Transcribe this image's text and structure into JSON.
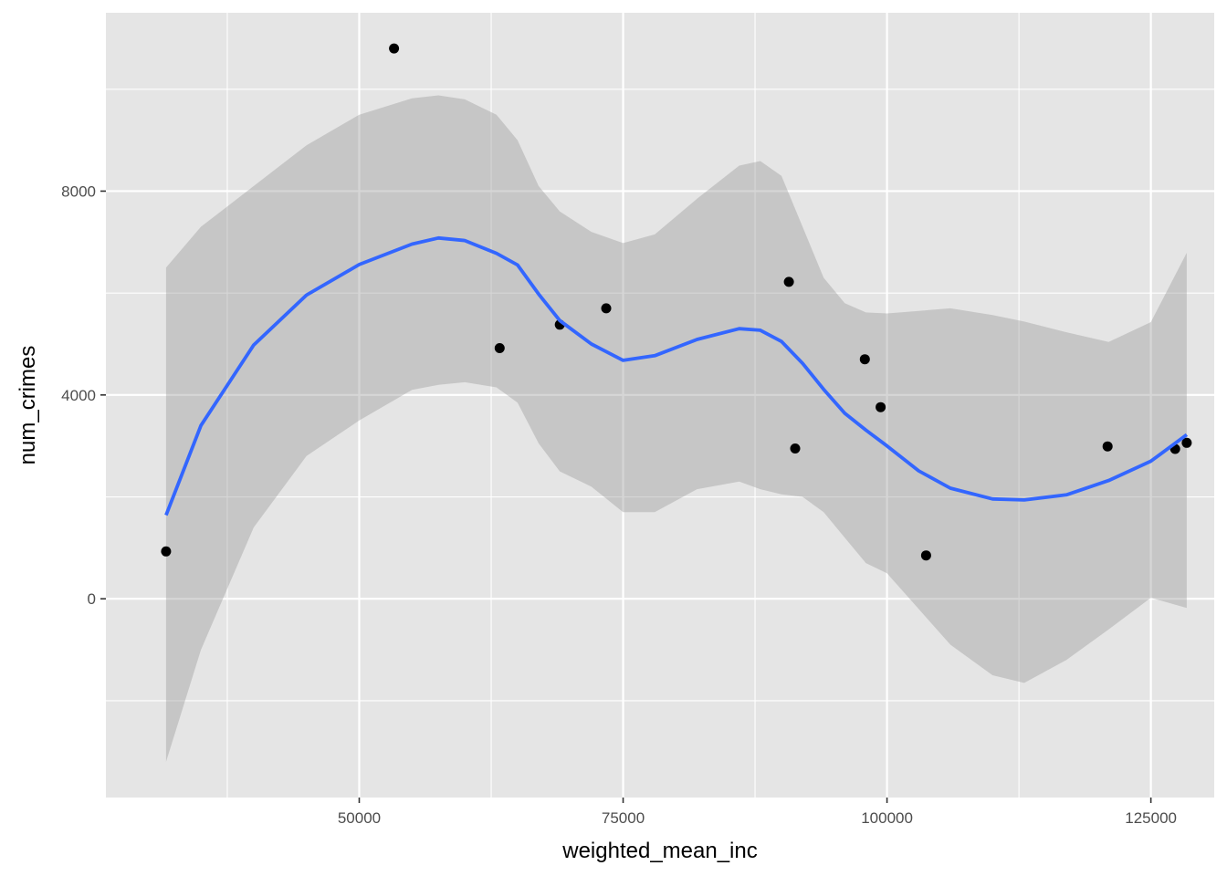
{
  "chart_data": {
    "type": "scatter",
    "title": "",
    "xlabel": "weighted_mean_inc",
    "ylabel": "num_crimes",
    "xlim": [
      26000,
      131000
    ],
    "ylim": [
      -3900,
      11500
    ],
    "x_ticks": [
      50000,
      75000,
      100000,
      125000
    ],
    "x_tick_labels": [
      "50000",
      "75000",
      "100000",
      "125000"
    ],
    "x_minor_ticks": [
      37500,
      62500,
      87500,
      112500
    ],
    "y_ticks": [
      0,
      4000,
      8000
    ],
    "y_tick_labels": [
      "0",
      "4000",
      "8000"
    ],
    "y_minor_ticks": [
      -2000,
      2000,
      6000,
      10000
    ],
    "grid": true,
    "colors": {
      "panel": "#e5e5e5",
      "grid": "#ffffff",
      "points": "#000000",
      "smooth_line": "#3366ff",
      "ribbon": "#999999"
    },
    "points": {
      "x": [
        31700,
        53300,
        63300,
        69000,
        73400,
        90700,
        91300,
        97900,
        99400,
        103700,
        120900,
        127300,
        128400
      ],
      "y": [
        930,
        10800,
        4920,
        5380,
        5700,
        6220,
        2950,
        4700,
        3760,
        850,
        2990,
        2940,
        3060
      ]
    },
    "smooth": {
      "x": [
        31700,
        35000,
        40000,
        45000,
        50000,
        55000,
        57500,
        60000,
        63000,
        65000,
        67000,
        69000,
        72000,
        75000,
        78000,
        82000,
        86000,
        88000,
        90000,
        92000,
        94000,
        96000,
        98000,
        100000,
        103000,
        106000,
        110000,
        113000,
        117000,
        121000,
        125000,
        128400
      ],
      "y": [
        1640,
        3400,
        4980,
        5960,
        6560,
        6960,
        7080,
        7030,
        6780,
        6550,
        5980,
        5460,
        5000,
        4680,
        4770,
        5090,
        5300,
        5270,
        5050,
        4620,
        4110,
        3640,
        3310,
        3000,
        2510,
        2170,
        1960,
        1940,
        2040,
        2320,
        2700,
        3220
      ]
    },
    "ribbon_upper": [
      6500,
      7300,
      8100,
      8900,
      9500,
      9820,
      9880,
      9800,
      9500,
      9000,
      8100,
      7600,
      7200,
      6980,
      7150,
      7850,
      8500,
      8590,
      8300,
      7300,
      6300,
      5800,
      5620,
      5600,
      5650,
      5700,
      5570,
      5440,
      5230,
      5040,
      5430,
      6790
    ],
    "ribbon_lower": [
      -3200,
      -1000,
      1400,
      2800,
      3500,
      4100,
      4200,
      4250,
      4150,
      3850,
      3050,
      2500,
      2200,
      1700,
      1700,
      2150,
      2300,
      2150,
      2050,
      2000,
      1700,
      1200,
      700,
      500,
      -200,
      -900,
      -1500,
      -1650,
      -1200,
      -600,
      20,
      -180
    ]
  }
}
